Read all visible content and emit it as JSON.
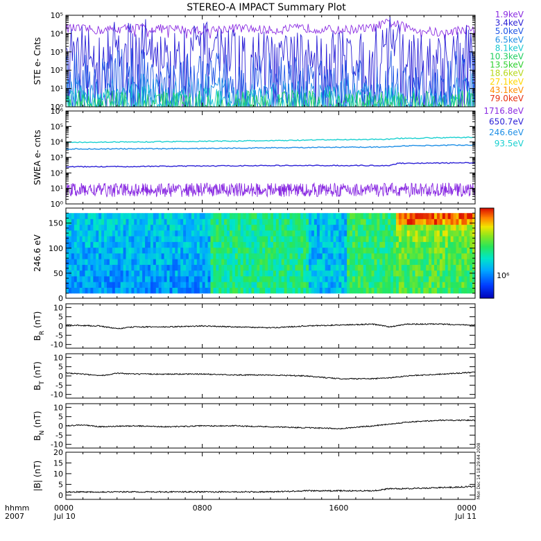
{
  "title": "STEREO-A IMPACT Summary Plot",
  "stamp": "Mon Dec 14 18:29:44 2008",
  "time_axis": {
    "corner_labels": [
      "hhmm",
      "2007"
    ],
    "ticks": [
      {
        "label": "0000",
        "sublabel": "Jul 10"
      },
      {
        "label": "0800",
        "sublabel": ""
      },
      {
        "label": "1600",
        "sublabel": ""
      },
      {
        "label": "0000",
        "sublabel": "Jul 11"
      }
    ]
  },
  "ste_legend": [
    {
      "label": "1.9keV",
      "color": "#8a2be2"
    },
    {
      "label": "3.4keV",
      "color": "#2a1fd6"
    },
    {
      "label": "5.0keV",
      "color": "#1f55e6"
    },
    {
      "label": "6.5keV",
      "color": "#1e8fe6"
    },
    {
      "label": "8.1keV",
      "color": "#18c8d0"
    },
    {
      "label": "10.3keV",
      "color": "#1fcf5f"
    },
    {
      "label": "13.5keV",
      "color": "#2fd12f"
    },
    {
      "label": "18.6keV",
      "color": "#b6d81a"
    },
    {
      "label": "27.1keV",
      "color": "#ffd700"
    },
    {
      "label": "43.1keV",
      "color": "#ff8c00"
    },
    {
      "label": "79.0keV",
      "color": "#e83010"
    }
  ],
  "swea_legend": [
    {
      "label": "1716.8eV",
      "color": "#8a2be2"
    },
    {
      "label": "650.7eV",
      "color": "#2a1fd6"
    },
    {
      "label": "246.6eV",
      "color": "#1e8fe6"
    },
    {
      "label": "93.5eV",
      "color": "#18d0d0"
    }
  ],
  "chart_data": [
    {
      "type": "line",
      "ylabel": "STE e- Cnts",
      "yscale": "log",
      "ylim": [
        1,
        100000
      ],
      "yticks": [
        "10⁰",
        "10¹",
        "10²",
        "10³",
        "10⁴",
        "10⁵"
      ],
      "xlim_hours": [
        0,
        24
      ],
      "x_hours": [
        0,
        2,
        4,
        6,
        8,
        10,
        12,
        14,
        16,
        18,
        19,
        20,
        22,
        24
      ],
      "series": [
        {
          "name": "1.9keV",
          "values": [
            20000,
            15000,
            20000,
            18000,
            15000,
            20000,
            15000,
            20000,
            15000,
            20000,
            40000,
            20000,
            10000,
            20000
          ]
        },
        {
          "name": "3.4keV",
          "values": [
            1000,
            200,
            2000,
            100,
            1000,
            300,
            500,
            200,
            400,
            100,
            3000,
            300,
            100,
            1000
          ]
        },
        {
          "name": "5.0keV",
          "values": [
            30,
            10,
            50,
            5,
            30,
            10,
            20,
            10,
            20,
            5,
            30,
            5,
            3,
            50
          ]
        },
        {
          "name": "6.5keV",
          "values": [
            5,
            3,
            10,
            2,
            10,
            3,
            5,
            3,
            5,
            2,
            5,
            2,
            1,
            10
          ]
        },
        {
          "name": "8.1keV",
          "values": [
            2,
            1,
            3,
            1,
            2,
            1,
            2,
            1,
            2,
            1,
            2,
            1,
            1,
            2
          ]
        },
        {
          "name": "10.3keV",
          "values": [
            1,
            1,
            1.5,
            1,
            1,
            1,
            1,
            1,
            1,
            1,
            1,
            1,
            1,
            1
          ]
        }
      ]
    },
    {
      "type": "line",
      "ylabel": "SWEA e- cnts",
      "yscale": "log",
      "ylim": [
        1,
        1000000
      ],
      "yticks": [
        "10⁰",
        "10¹",
        "10²",
        "10³",
        "10⁴",
        "10⁵",
        "10⁶"
      ],
      "xlim_hours": [
        0,
        24
      ],
      "x_hours": [
        0,
        4,
        8,
        12,
        16,
        19,
        19.5,
        24
      ],
      "series": [
        {
          "name": "1716.8eV",
          "values": [
            8,
            8,
            8,
            8,
            8,
            8,
            8,
            8
          ]
        },
        {
          "name": "650.7eV",
          "values": [
            250,
            260,
            280,
            300,
            300,
            300,
            420,
            450
          ]
        },
        {
          "name": "246.6eV",
          "values": [
            3500,
            3600,
            3800,
            4200,
            4500,
            4800,
            5500,
            6500
          ]
        },
        {
          "name": "93.5eV",
          "values": [
            9500,
            10000,
            11000,
            12000,
            14000,
            15000,
            17000,
            20000
          ]
        }
      ]
    },
    {
      "type": "heatmap",
      "ylabel": "246.6 eV",
      "ylim": [
        0,
        180
      ],
      "yticks": [
        "0",
        "50",
        "100",
        "150"
      ],
      "xlim_hours": [
        0,
        24
      ],
      "colorbar": {
        "tick_label": "10⁶"
      }
    },
    {
      "type": "line",
      "ylabel": "B_R (nT)",
      "label_main": "B",
      "label_sub": "R",
      "label_unit": " (nT)",
      "ylim": [
        -12,
        12
      ],
      "yticks": [
        "-10",
        "-5",
        "0",
        "5",
        "10"
      ],
      "ytick_values": [
        -10,
        -5,
        0,
        5,
        10
      ],
      "xlim_hours": [
        0,
        24
      ],
      "x": [
        0,
        2,
        3,
        4,
        6,
        8,
        10,
        12,
        14,
        16,
        18,
        19,
        20,
        22,
        24
      ],
      "values": [
        0.5,
        0,
        -1.5,
        -0.5,
        -0.5,
        0,
        -0.5,
        -1,
        0,
        0.5,
        1,
        -0.5,
        1,
        1,
        0.5
      ]
    },
    {
      "type": "line",
      "ylabel": "B_T (nT)",
      "label_main": "B",
      "label_sub": "T",
      "label_unit": " (nT)",
      "ylim": [
        -12,
        12
      ],
      "yticks": [
        "-10",
        "-5",
        "0",
        "5",
        "10"
      ],
      "ytick_values": [
        -10,
        -5,
        0,
        5,
        10
      ],
      "xlim_hours": [
        0,
        24
      ],
      "x": [
        0,
        1,
        2,
        3,
        4,
        6,
        8,
        10,
        12,
        14,
        16,
        18,
        19,
        20,
        22,
        24
      ],
      "values": [
        1.5,
        1,
        0,
        1.5,
        1,
        1,
        1,
        0.5,
        0.5,
        0,
        -1.5,
        -1.5,
        -1,
        0,
        1,
        2
      ]
    },
    {
      "type": "line",
      "ylabel": "B_N (nT)",
      "label_main": "B",
      "label_sub": "N",
      "label_unit": " (nT)",
      "ylim": [
        -12,
        12
      ],
      "yticks": [
        "-10",
        "-5",
        "0",
        "5",
        "10"
      ],
      "ytick_values": [
        -10,
        -5,
        0,
        5,
        10
      ],
      "xlim_hours": [
        0,
        24
      ],
      "x": [
        0,
        1,
        2,
        4,
        6,
        8,
        10,
        12,
        14,
        16,
        18,
        19,
        20,
        22,
        24
      ],
      "values": [
        0,
        0.5,
        -0.5,
        0,
        -0.5,
        0,
        0,
        -0.5,
        -1,
        -1.5,
        0,
        1,
        2,
        3,
        3
      ]
    },
    {
      "type": "line",
      "ylabel": "|B| (nT)",
      "label_main": "|B|",
      "label_sub": "",
      "label_unit": " (nT)",
      "ylim": [
        -2,
        20
      ],
      "yticks": [
        "0",
        "5",
        "10",
        "15",
        "20"
      ],
      "ytick_values": [
        0,
        5,
        10,
        15,
        20
      ],
      "xlim_hours": [
        0,
        24
      ],
      "x": [
        0,
        2,
        4,
        6,
        8,
        10,
        12,
        14,
        16,
        18,
        19,
        20,
        22,
        24
      ],
      "values": [
        1.5,
        1.5,
        1.5,
        1.5,
        1.5,
        1.5,
        1.5,
        2,
        2,
        2,
        3,
        3,
        3.5,
        4
      ]
    }
  ]
}
